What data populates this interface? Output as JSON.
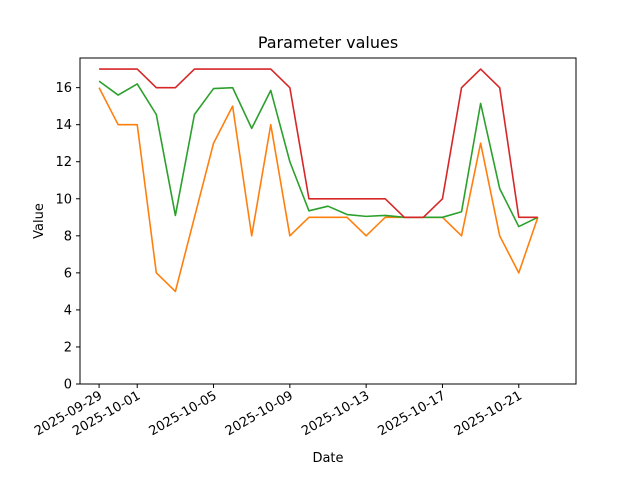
{
  "chart_data": {
    "type": "line",
    "title": "Parameter values",
    "xlabel": "Date",
    "ylabel": "Value",
    "x": [
      "2025-09-29",
      "2025-09-30",
      "2025-10-01",
      "2025-10-02",
      "2025-10-03",
      "2025-10-04",
      "2025-10-05",
      "2025-10-06",
      "2025-10-07",
      "2025-10-08",
      "2025-10-09",
      "2025-10-10",
      "2025-10-11",
      "2025-10-12",
      "2025-10-13",
      "2025-10-14",
      "2025-10-15",
      "2025-10-16",
      "2025-10-17",
      "2025-10-18",
      "2025-10-19",
      "2025-10-20",
      "2025-10-21",
      "2025-10-22"
    ],
    "xlim": [
      "2025-09-28",
      "2025-10-24"
    ],
    "xticks": [
      "2025-09-29",
      "2025-10-01",
      "2025-10-05",
      "2025-10-09",
      "2025-10-13",
      "2025-10-17",
      "2025-10-21"
    ],
    "ylim": [
      0,
      17.6
    ],
    "yticks": [
      0,
      2,
      4,
      6,
      8,
      10,
      12,
      14,
      16
    ],
    "grid": false,
    "series": [
      {
        "color": "#ff7f0e",
        "values": [
          16,
          14,
          14,
          6,
          5,
          9,
          13,
          15,
          8,
          14,
          8,
          9,
          9,
          9,
          8,
          9,
          9,
          9,
          9,
          8,
          13,
          8,
          6,
          9
        ]
      },
      {
        "color": "#2ca02c",
        "values": [
          16.35,
          15.6,
          16.2,
          14.55,
          9.1,
          14.55,
          15.95,
          16.0,
          13.8,
          15.85,
          12.0,
          9.35,
          9.6,
          9.15,
          9.05,
          9.1,
          9.0,
          9.0,
          9.0,
          9.3,
          15.15,
          10.55,
          8.5,
          9.0
        ]
      },
      {
        "color": "#d62728",
        "values": [
          17,
          17,
          17,
          16,
          16,
          17,
          17,
          17,
          17,
          17,
          16,
          10,
          10,
          10,
          10,
          10,
          9,
          9,
          10,
          16,
          17,
          16,
          9,
          9
        ]
      }
    ]
  }
}
